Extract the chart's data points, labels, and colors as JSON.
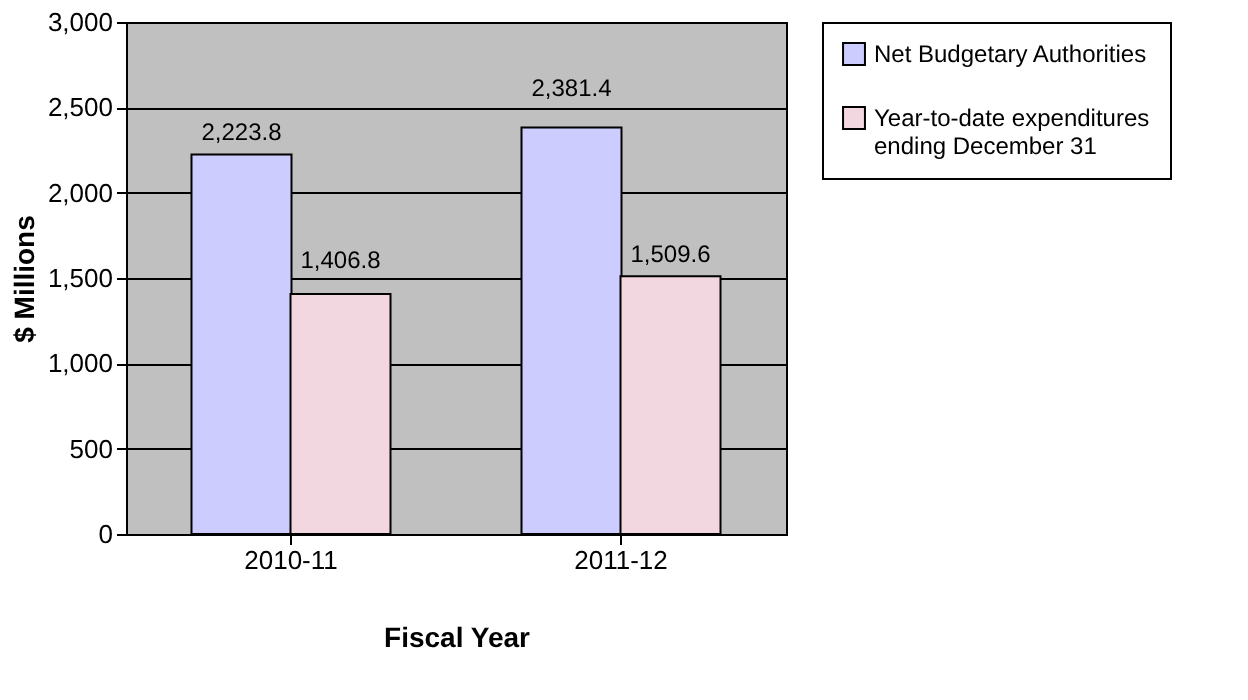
{
  "chart_data": {
    "type": "bar",
    "xlabel": "Fiscal Year",
    "ylabel": "$ Millions",
    "categories": [
      "2010-11",
      "2011-12"
    ],
    "series": [
      {
        "name": "Net Budgetary Authorities",
        "color": "#ccccff",
        "values": [
          2223.8,
          2381.4
        ],
        "value_labels": [
          "2,223.8",
          "2,381.4"
        ]
      },
      {
        "name": "Year-to-date expenditures ending December 31",
        "color": "#f2d6e0",
        "values": [
          1406.8,
          1509.6
        ],
        "value_labels": [
          "1,406.8",
          "1,509.6"
        ]
      }
    ],
    "ylim": [
      0,
      3000
    ],
    "yticks": [
      0,
      {
        "value": 500,
        "label": "500"
      },
      {
        "value": 1000,
        "label": "1,000"
      },
      {
        "value": 1500,
        "label": "1,500"
      },
      {
        "value": 2000,
        "label": "2,000"
      },
      {
        "value": 2500,
        "label": "2,500"
      },
      {
        "value": 3000,
        "label": "3,000"
      }
    ],
    "grid": "y",
    "legend": "right",
    "data_labels": true
  }
}
